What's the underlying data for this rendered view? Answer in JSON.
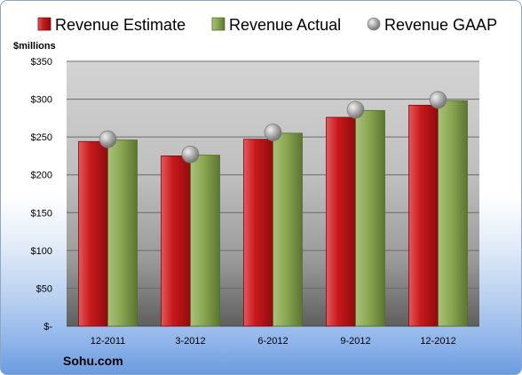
{
  "chart_data": {
    "type": "bar",
    "unit_label": "$millions",
    "categories": [
      "12-2011",
      "3-2012",
      "6-2012",
      "9-2012",
      "12-2012"
    ],
    "series": [
      {
        "name": "Revenue Estimate",
        "values": [
          244,
          225,
          247,
          276,
          292
        ],
        "color": "#c0161a",
        "kind": "bar"
      },
      {
        "name": "Revenue Actual",
        "values": [
          246,
          226,
          255,
          285,
          298
        ],
        "color": "#86a44e",
        "kind": "bar"
      },
      {
        "name": "Revenue GAAP",
        "values": [
          247,
          227,
          256,
          286,
          299
        ],
        "color": "#a6a6a6",
        "kind": "marker"
      }
    ],
    "ylim": [
      0,
      350
    ],
    "yticks": [
      0,
      50,
      100,
      150,
      200,
      250,
      300,
      350
    ],
    "ytick_labels": [
      "$-",
      "$50",
      "$100",
      "$150",
      "$200",
      "$250",
      "$300",
      "$350"
    ],
    "grid": true,
    "legend_position": "top"
  },
  "footer": {
    "company": "Sohu.com"
  }
}
